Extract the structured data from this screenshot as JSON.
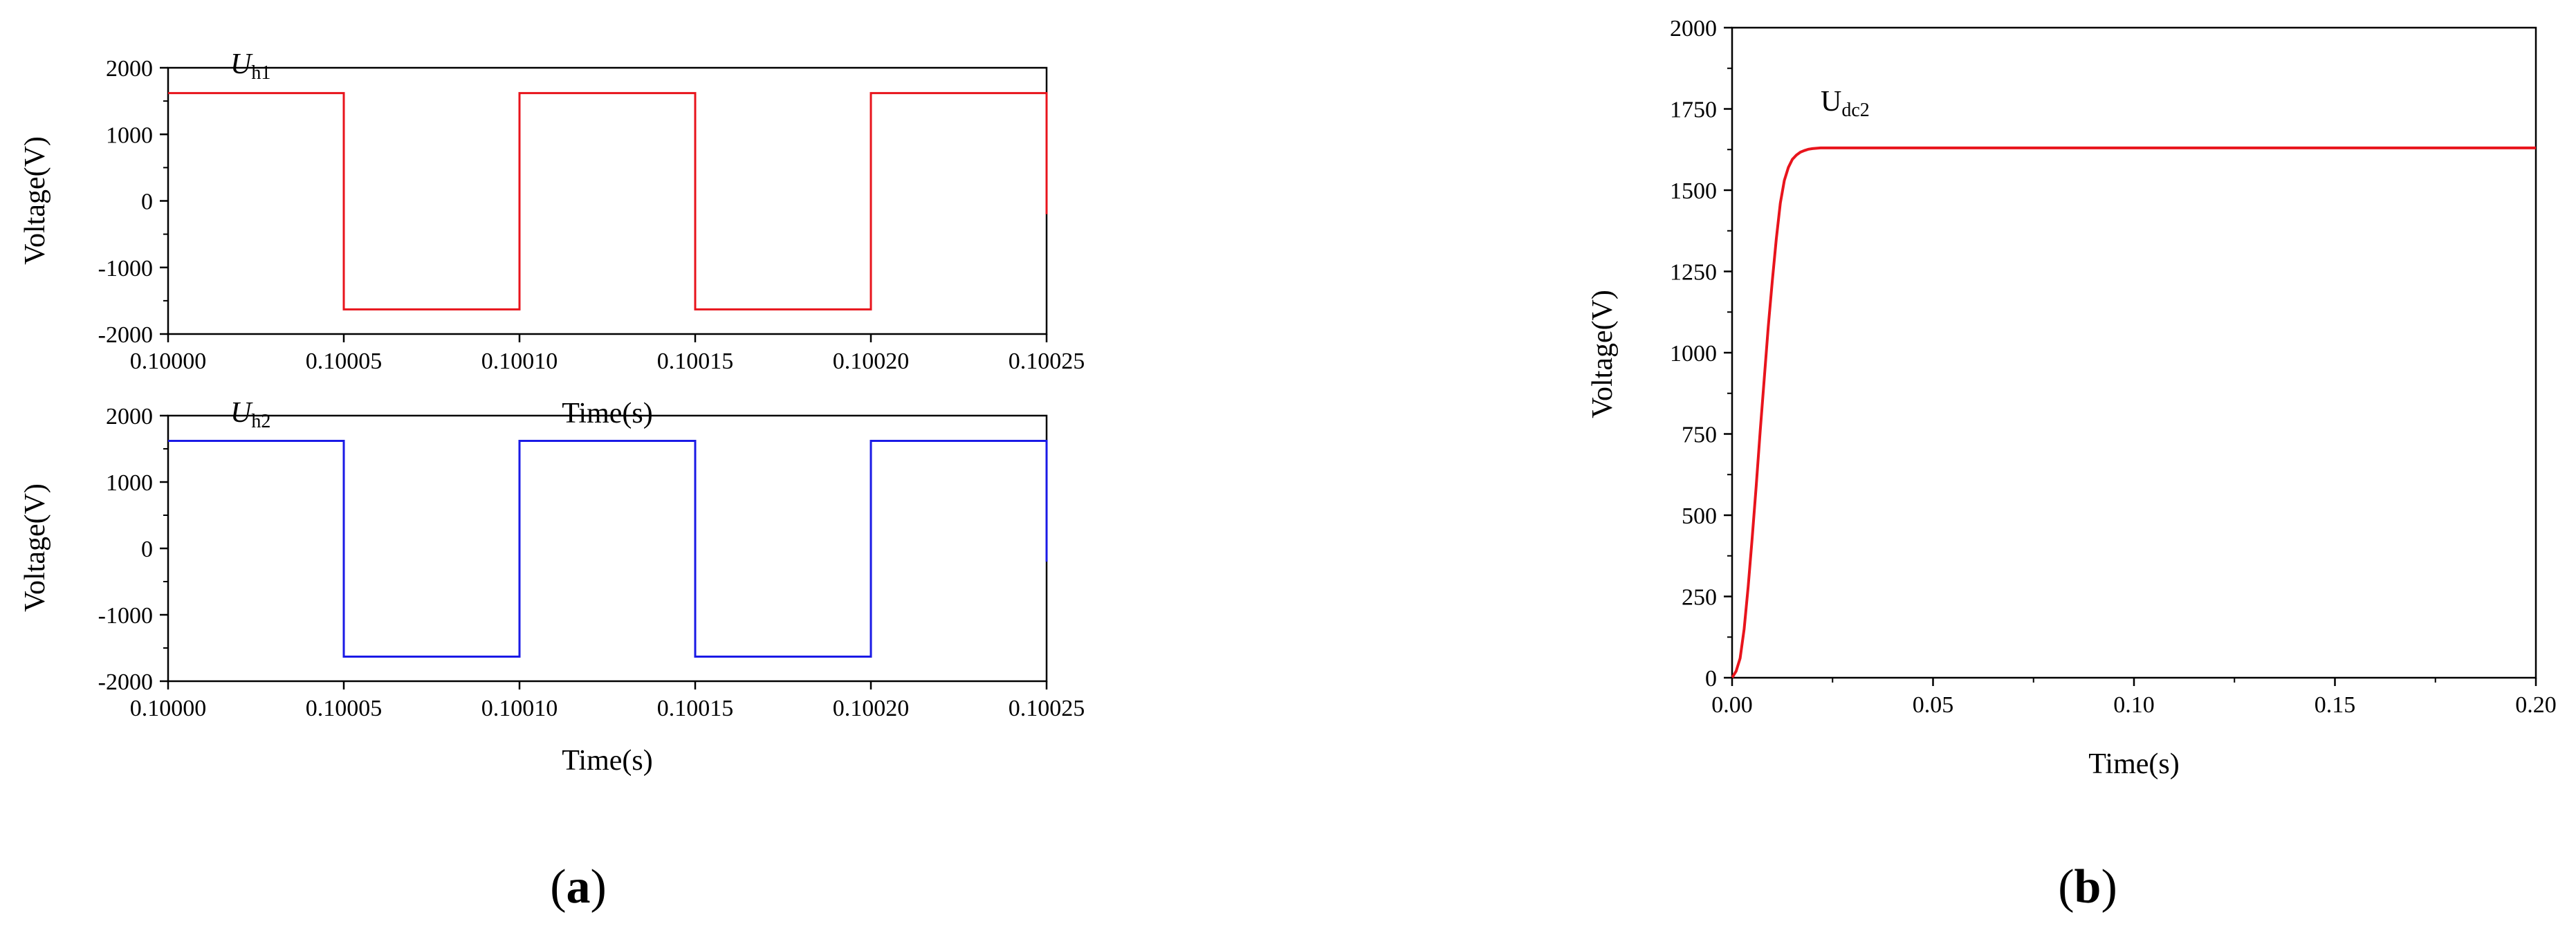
{
  "panels": {
    "a": {
      "open": "(",
      "letter": "a",
      "close": ")"
    },
    "b": {
      "open": "(",
      "letter": "b",
      "close": ")"
    }
  },
  "chart_data": [
    {
      "id": "uh1",
      "type": "line",
      "xlabel": "Time(s)",
      "ylabel": "Voltage(V)",
      "xlim": [
        0.1,
        0.10025
      ],
      "ylim": [
        -2000,
        2000
      ],
      "x_ticks": [
        0.1,
        0.10005,
        0.1001,
        0.10015,
        0.1002,
        0.10025
      ],
      "x_tick_labels": [
        "0.10000",
        "0.10005",
        "0.10010",
        "0.10015",
        "0.10020",
        "0.10025"
      ],
      "y_ticks": [
        -2000,
        -1000,
        0,
        1000,
        2000
      ],
      "y_tick_labels": [
        "-2000",
        "-1000",
        "0",
        "1000",
        "2000"
      ],
      "color": "#e8141c",
      "series": [
        {
          "label": {
            "base": "U",
            "sub": "h1"
          },
          "x": [
            0.1,
            0.10005,
            0.10005,
            0.1001,
            0.1001,
            0.10015,
            0.10015,
            0.1002,
            0.1002,
            0.10025,
            0.10025
          ],
          "y": [
            1620,
            1620,
            -1630,
            -1630,
            1620,
            1620,
            -1630,
            -1630,
            1620,
            1620,
            -200
          ]
        }
      ]
    },
    {
      "id": "uh2",
      "type": "line",
      "xlabel": "Time(s)",
      "ylabel": "Voltage(V)",
      "xlim": [
        0.1,
        0.10025
      ],
      "ylim": [
        -2000,
        2000
      ],
      "x_ticks": [
        0.1,
        0.10005,
        0.1001,
        0.10015,
        0.1002,
        0.10025
      ],
      "x_tick_labels": [
        "0.10000",
        "0.10005",
        "0.10010",
        "0.10015",
        "0.10020",
        "0.10025"
      ],
      "y_ticks": [
        -2000,
        -1000,
        0,
        1000,
        2000
      ],
      "y_tick_labels": [
        "-2000",
        "-1000",
        "0",
        "1000",
        "2000"
      ],
      "color": "#1a1ae6",
      "series": [
        {
          "label": {
            "base": "U",
            "sub": "h2"
          },
          "x": [
            0.1,
            0.10005,
            0.10005,
            0.1001,
            0.1001,
            0.10015,
            0.10015,
            0.1002,
            0.1002,
            0.10025,
            0.10025
          ],
          "y": [
            1620,
            1620,
            -1630,
            -1630,
            1620,
            1620,
            -1630,
            -1630,
            1620,
            1620,
            -200
          ]
        }
      ]
    },
    {
      "id": "udc2",
      "type": "line",
      "xlabel": "Time(s)",
      "ylabel": "Voltage(V)",
      "xlim": [
        0,
        0.2
      ],
      "ylim": [
        0,
        2000
      ],
      "x_ticks": [
        0,
        0.05,
        0.1,
        0.15,
        0.2
      ],
      "x_tick_labels": [
        "0.00",
        "0.05",
        "0.10",
        "0.15",
        "0.20"
      ],
      "y_ticks": [
        0,
        250,
        500,
        750,
        1000,
        1250,
        1500,
        1750,
        2000
      ],
      "y_tick_labels": [
        "0",
        "250",
        "500",
        "750",
        "1000",
        "1250",
        "1500",
        "1750",
        "2000"
      ],
      "color": "#e8141c",
      "series": [
        {
          "label": {
            "base": "U",
            "sub": "dc2"
          },
          "x": [
            0,
            0.001,
            0.002,
            0.003,
            0.004,
            0.005,
            0.006,
            0.007,
            0.008,
            0.009,
            0.01,
            0.011,
            0.012,
            0.013,
            0.014,
            0.015,
            0.016,
            0.017,
            0.018,
            0.019,
            0.02,
            0.022,
            0.025,
            0.05,
            0.1,
            0.15,
            0.2
          ],
          "y": [
            0,
            20,
            60,
            150,
            280,
            430,
            590,
            760,
            920,
            1080,
            1220,
            1350,
            1460,
            1530,
            1570,
            1595,
            1608,
            1617,
            1622,
            1626,
            1628,
            1630,
            1630,
            1630,
            1630,
            1630,
            1630
          ]
        }
      ]
    }
  ]
}
